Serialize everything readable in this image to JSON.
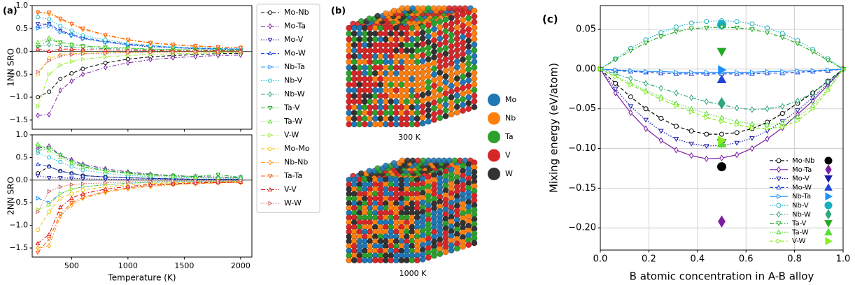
{
  "chart_data": [
    {
      "type": "line",
      "panel_label": "(a)",
      "ylabel": "1NN SRO",
      "x": [
        200,
        300,
        400,
        500,
        600,
        800,
        1000,
        1200,
        1400,
        1600,
        1800,
        2000
      ],
      "xlim": [
        150,
        2100
      ],
      "ylim": [
        -1.7,
        1.0
      ],
      "yticks": [
        {
          "value": -1.5,
          "label": "−1.5"
        },
        {
          "value": -1.0,
          "label": "−1.0"
        },
        {
          "value": -0.5,
          "label": "−0.5"
        },
        {
          "value": 0.0,
          "label": "0.0"
        },
        0.5,
        {
          "value": 1.0,
          "label": "1.0"
        }
      ],
      "hline": 0,
      "series": [
        {
          "name": "Mo-Nb",
          "color": "#000000",
          "marker": "o",
          "linestyle": "--",
          "values": [
            -1.0,
            -0.88,
            -0.6,
            -0.48,
            -0.38,
            -0.25,
            -0.17,
            -0.12,
            -0.09,
            -0.07,
            -0.05,
            -0.04
          ]
        },
        {
          "name": "Mo-Ta",
          "color": "#7b1fa2",
          "marker": "d",
          "linestyle": "-.",
          "values": [
            -1.4,
            -1.38,
            -0.85,
            -0.65,
            -0.5,
            -0.35,
            -0.25,
            -0.18,
            -0.14,
            -0.11,
            -0.09,
            -0.08
          ]
        },
        {
          "name": "Mo-V",
          "color": "#1a1aa8",
          "marker": "v",
          "linestyle": ":",
          "values": [
            0.6,
            0.6,
            0.45,
            0.35,
            0.28,
            0.2,
            0.14,
            0.1,
            0.08,
            0.06,
            0.05,
            0.04
          ]
        },
        {
          "name": "Mo-W",
          "color": "#2244dd",
          "marker": "^",
          "linestyle": "--",
          "values": [
            0.55,
            0.6,
            0.45,
            0.38,
            0.3,
            0.22,
            0.16,
            0.12,
            0.09,
            0.07,
            0.06,
            0.05
          ]
        },
        {
          "name": "Nb-Ta",
          "color": "#1e90ff",
          "marker": ">",
          "linestyle": "-.",
          "values": [
            0.5,
            0.55,
            0.42,
            0.35,
            0.28,
            0.2,
            0.15,
            0.11,
            0.08,
            0.06,
            0.05,
            0.04
          ]
        },
        {
          "name": "Nb-V",
          "color": "#17becf",
          "marker": "o",
          "linestyle": ":",
          "values": [
            0.75,
            0.7,
            0.55,
            0.45,
            0.35,
            0.25,
            0.18,
            0.13,
            0.1,
            0.08,
            0.07,
            0.06
          ]
        },
        {
          "name": "Nb-W",
          "color": "#2ea87a",
          "marker": "d",
          "linestyle": "-.",
          "values": [
            0.1,
            0.15,
            0.12,
            0.1,
            0.08,
            0.06,
            0.05,
            0.04,
            0.03,
            0.03,
            0.02,
            0.02
          ]
        },
        {
          "name": "Ta-V",
          "color": "#22aa22",
          "marker": "v",
          "linestyle": "-.",
          "values": [
            0.1,
            0.25,
            0.2,
            0.15,
            0.12,
            0.09,
            0.07,
            0.05,
            0.04,
            0.03,
            0.03,
            0.02
          ]
        },
        {
          "name": "Ta-W",
          "color": "#66dd33",
          "marker": "^",
          "linestyle": ":",
          "values": [
            0.2,
            0.3,
            0.2,
            0.15,
            0.12,
            0.09,
            0.07,
            0.05,
            0.04,
            0.03,
            0.03,
            0.02
          ]
        },
        {
          "name": "V-W",
          "color": "#99ee33",
          "marker": ">",
          "linestyle": "-.",
          "values": [
            -1.2,
            -0.5,
            -0.3,
            -0.22,
            -0.17,
            -0.12,
            -0.09,
            -0.07,
            -0.05,
            -0.04,
            -0.03,
            -0.03
          ]
        },
        {
          "name": "Mo-Mo",
          "color": "#f2c40f",
          "marker": "o",
          "linestyle": "--",
          "values": [
            -0.5,
            -0.15,
            -0.08,
            -0.05,
            -0.04,
            -0.03,
            -0.02,
            -0.02,
            -0.01,
            -0.01,
            -0.01,
            -0.01
          ]
        },
        {
          "name": "Nb-Nb",
          "color": "#ff9900",
          "marker": "d",
          "linestyle": "-.",
          "values": [
            0.85,
            0.82,
            0.7,
            0.6,
            0.48,
            0.35,
            0.25,
            0.18,
            0.14,
            0.11,
            0.09,
            0.08
          ]
        },
        {
          "name": "Ta-Ta",
          "color": "#ff5500",
          "marker": "v",
          "linestyle": "-.",
          "values": [
            0.85,
            0.85,
            0.72,
            0.6,
            0.5,
            0.36,
            0.26,
            0.19,
            0.15,
            0.12,
            0.1,
            0.08
          ]
        },
        {
          "name": "V-V",
          "color": "#dd1111",
          "marker": "^",
          "linestyle": "-.",
          "values": [
            0.05,
            0.0,
            0.05,
            0.05,
            0.04,
            0.03,
            0.02,
            0.02,
            0.01,
            0.01,
            0.01,
            0.01
          ]
        },
        {
          "name": "W-W",
          "color": "#cd6060",
          "marker": ">",
          "linestyle": ":",
          "values": [
            -0.45,
            -0.2,
            -0.1,
            -0.07,
            -0.05,
            -0.04,
            -0.03,
            -0.02,
            -0.02,
            -0.01,
            -0.01,
            -0.01
          ]
        }
      ]
    },
    {
      "type": "line",
      "ylabel": "2NN SRO",
      "xlabel": "Temperature (K)",
      "x": [
        200,
        300,
        400,
        500,
        600,
        800,
        1000,
        1200,
        1400,
        1600,
        1800,
        2000
      ],
      "xlim": [
        150,
        2100
      ],
      "xticks": [
        500,
        1000,
        1500,
        2000
      ],
      "ylim": [
        -1.7,
        1.0
      ],
      "yticks": [
        {
          "value": -1.5,
          "label": "−1.5"
        },
        {
          "value": -1.0,
          "label": "−1.0"
        },
        {
          "value": -0.5,
          "label": "−0.5"
        },
        {
          "value": 0.0,
          "label": "0.0"
        },
        0.5,
        {
          "value": 1.0,
          "label": "1.0"
        }
      ],
      "hline": 0,
      "series": [
        {
          "values": [
            0.15,
            0.3,
            0.2,
            0.15,
            0.1,
            0.07,
            0.05,
            0.04,
            0.03,
            0.02,
            0.02,
            0.02
          ]
        },
        {
          "values": [
            0.7,
            0.75,
            0.55,
            0.45,
            0.35,
            0.25,
            0.18,
            0.13,
            0.1,
            0.08,
            0.07,
            0.06
          ]
        },
        {
          "values": [
            0.1,
            0.05,
            0.05,
            0.04,
            0.03,
            0.02,
            0.02,
            0.01,
            0.01,
            0.01,
            0.01,
            0.01
          ]
        },
        {
          "values": [
            0.35,
            0.3,
            0.2,
            0.15,
            0.1,
            0.07,
            0.05,
            0.04,
            0.03,
            0.02,
            0.02,
            0.02
          ]
        },
        {
          "values": [
            -0.4,
            -0.5,
            -0.3,
            -0.2,
            -0.15,
            -0.1,
            -0.07,
            -0.05,
            -0.04,
            -0.03,
            -0.03,
            -0.02
          ]
        },
        {
          "values": [
            0.6,
            0.5,
            0.4,
            0.3,
            0.22,
            0.15,
            0.1,
            0.08,
            0.06,
            0.05,
            0.04,
            0.04
          ]
        },
        {
          "values": [
            0.65,
            0.7,
            0.55,
            0.42,
            0.33,
            0.22,
            0.16,
            0.12,
            0.09,
            0.07,
            0.06,
            0.05
          ]
        },
        {
          "values": [
            0.75,
            0.7,
            0.55,
            0.4,
            0.3,
            0.2,
            0.15,
            0.11,
            0.1,
            0.08,
            0.12,
            0.06
          ]
        },
        {
          "values": [
            0.8,
            0.65,
            0.5,
            0.38,
            0.28,
            0.2,
            0.14,
            0.1,
            0.08,
            0.06,
            0.05,
            0.05
          ]
        },
        {
          "values": [
            -0.65,
            -0.55,
            -0.3,
            -0.2,
            -0.15,
            -0.1,
            -0.07,
            -0.05,
            -0.04,
            -0.03,
            -0.03,
            -0.02
          ]
        },
        {
          "values": [
            -1.1,
            -0.7,
            -0.4,
            -0.3,
            -0.22,
            -0.15,
            -0.1,
            -0.08,
            -0.06,
            -0.05,
            -0.04,
            -0.03
          ]
        },
        {
          "values": [
            -1.5,
            -1.45,
            -0.8,
            -0.55,
            -0.4,
            -0.27,
            -0.19,
            -0.14,
            -0.1,
            -0.08,
            -0.06,
            -0.05
          ]
        },
        {
          "values": [
            -1.6,
            -1.3,
            -0.75,
            -0.5,
            -0.38,
            -0.25,
            -0.17,
            -0.12,
            -0.09,
            -0.07,
            -0.06,
            -0.05
          ]
        },
        {
          "values": [
            -1.4,
            -1.2,
            -0.6,
            -0.4,
            -0.3,
            -0.2,
            -0.14,
            -0.1,
            -0.08,
            -0.06,
            -0.05,
            -0.04
          ]
        },
        {
          "values": [
            -0.7,
            -0.25,
            -0.15,
            -0.1,
            -0.08,
            -0.06,
            -0.04,
            -0.03,
            -0.02,
            -0.02,
            -0.02,
            -0.01
          ]
        }
      ]
    },
    {
      "type": "line",
      "panel_label": "(c)",
      "xlabel": "B atomic concentration in A-B alloy",
      "ylabel": "Mixing energy (eV/atom)",
      "x": [
        0,
        0.0625,
        0.125,
        0.1875,
        0.25,
        0.3125,
        0.375,
        0.4375,
        0.5,
        0.5625,
        0.625,
        0.6875,
        0.75,
        0.8125,
        0.875,
        0.9375,
        1
      ],
      "xlim": [
        0,
        1
      ],
      "xticks": [
        {
          "value": 0,
          "label": "0.0"
        },
        0.2,
        0.4,
        0.6,
        0.8,
        {
          "value": 1,
          "label": "1.0"
        }
      ],
      "ylim": [
        -0.228,
        0.08
      ],
      "yticks": [
        {
          "value": -0.2,
          "label": "−0.20"
        },
        {
          "value": -0.15,
          "label": "−0.15"
        },
        {
          "value": -0.1,
          "label": "−0.10"
        },
        {
          "value": -0.05,
          "label": "−0.05"
        },
        {
          "value": 0,
          "label": "0.00"
        },
        0.05
      ],
      "grid": true,
      "marker_x": 0.5,
      "series": [
        {
          "name": "Mo-Nb",
          "color": "#000000",
          "marker": "o",
          "linestyle": "--",
          "marker_value": -0.123,
          "values": [
            0,
            -0.018,
            -0.035,
            -0.05,
            -0.062,
            -0.072,
            -0.078,
            -0.082,
            -0.082,
            -0.08,
            -0.075,
            -0.067,
            -0.056,
            -0.043,
            -0.03,
            -0.015,
            0
          ]
        },
        {
          "name": "Mo-Ta",
          "color": "#7b1fa2",
          "marker": "d",
          "linestyle": "-",
          "marker_value": -0.192,
          "values": [
            0,
            -0.03,
            -0.055,
            -0.075,
            -0.09,
            -0.102,
            -0.109,
            -0.113,
            -0.112,
            -0.108,
            -0.1,
            -0.088,
            -0.074,
            -0.057,
            -0.04,
            -0.02,
            0
          ]
        },
        {
          "name": "Mo-V",
          "color": "#1a1aa8",
          "marker": "v",
          "linestyle": ":",
          "marker_value": -0.093,
          "values": [
            0,
            -0.025,
            -0.047,
            -0.064,
            -0.078,
            -0.088,
            -0.094,
            -0.097,
            -0.096,
            -0.093,
            -0.087,
            -0.078,
            -0.066,
            -0.052,
            -0.036,
            -0.018,
            0
          ]
        },
        {
          "name": "Mo-W",
          "color": "#2244dd",
          "marker": "^",
          "linestyle": "--",
          "marker_value": -0.013,
          "values": [
            0,
            -0.002,
            -0.003,
            -0.004,
            -0.005,
            -0.006,
            -0.006,
            -0.006,
            -0.006,
            -0.006,
            -0.006,
            -0.005,
            -0.005,
            -0.004,
            -0.003,
            -0.002,
            0
          ]
        },
        {
          "name": "Nb-Ta",
          "color": "#1e90ff",
          "marker": ">",
          "linestyle": "-",
          "marker_value": -0.001,
          "values": [
            0,
            -0.001,
            -0.002,
            -0.003,
            -0.003,
            -0.004,
            -0.004,
            -0.004,
            -0.004,
            -0.004,
            -0.004,
            -0.003,
            -0.003,
            -0.002,
            -0.002,
            -0.001,
            0
          ]
        },
        {
          "name": "Nb-V",
          "color": "#17b0c0",
          "marker": "o",
          "linestyle": ":",
          "marker_value": 0.056,
          "values": [
            0,
            0.013,
            0.026,
            0.037,
            0.046,
            0.053,
            0.058,
            0.06,
            0.061,
            0.06,
            0.057,
            0.052,
            0.045,
            0.036,
            0.025,
            0.013,
            0
          ]
        },
        {
          "name": "Nb-W",
          "color": "#2ea87a",
          "marker": "d",
          "linestyle": "-.",
          "marker_value": -0.043,
          "values": [
            0,
            -0.006,
            -0.012,
            -0.018,
            -0.024,
            -0.03,
            -0.036,
            -0.041,
            -0.045,
            -0.049,
            -0.051,
            -0.05,
            -0.047,
            -0.04,
            -0.03,
            -0.016,
            0
          ]
        },
        {
          "name": "Ta-V",
          "color": "#22aa22",
          "marker": "v",
          "linestyle": "-.",
          "marker_value": 0.022,
          "values": [
            0,
            0.012,
            0.023,
            0.033,
            0.041,
            0.047,
            0.051,
            0.052,
            0.053,
            0.052,
            0.05,
            0.046,
            0.04,
            0.032,
            0.022,
            0.011,
            0
          ]
        },
        {
          "name": "Ta-W",
          "color": "#55dd33",
          "marker": "^",
          "linestyle": ":",
          "marker_value": -0.094,
          "values": [
            0,
            -0.009,
            -0.018,
            -0.027,
            -0.035,
            -0.043,
            -0.05,
            -0.056,
            -0.061,
            -0.066,
            -0.069,
            -0.07,
            -0.068,
            -0.06,
            -0.046,
            -0.025,
            0
          ]
        },
        {
          "name": "V-W",
          "color": "#88ee22",
          "marker": ">",
          "linestyle": "--",
          "marker_value": -0.09,
          "values": [
            0,
            -0.01,
            -0.02,
            -0.029,
            -0.038,
            -0.046,
            -0.054,
            -0.061,
            -0.066,
            -0.07,
            -0.074,
            -0.075,
            -0.073,
            -0.065,
            -0.05,
            -0.027,
            0
          ]
        }
      ]
    }
  ],
  "structure_panel": {
    "panel_label": "(b)",
    "elements": [
      "Mo",
      "Nb",
      "Ta",
      "V",
      "W"
    ],
    "element_colors": [
      "#1f77b4",
      "#ff7f0e",
      "#2ca02c",
      "#d62728",
      "#333333"
    ],
    "images": [
      "300 K",
      "1000 K"
    ]
  }
}
